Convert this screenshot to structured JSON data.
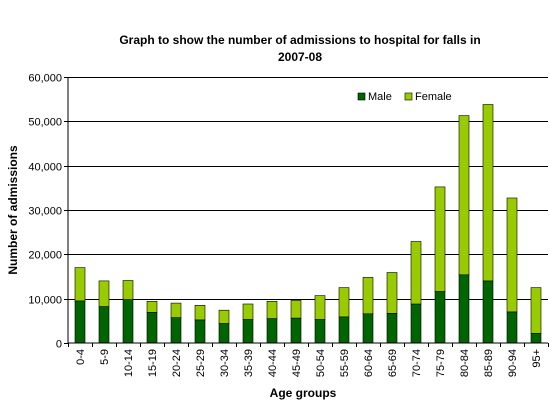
{
  "chart_data": {
    "type": "bar",
    "stacked": true,
    "title_line1": "Graph to show the number of admissions to hospital for falls in",
    "title_line2": "2007-08",
    "xlabel": "Age groups",
    "ylabel": "Number of admissions",
    "ylim": [
      0,
      60000
    ],
    "yticks": [
      0,
      10000,
      20000,
      30000,
      40000,
      50000,
      60000
    ],
    "ytick_labels": [
      "0",
      "10,000",
      "20,000",
      "30,000",
      "40,000",
      "50,000",
      "60,000"
    ],
    "grid": true,
    "legend_position": "top-right",
    "categories": [
      "0-4",
      "5-9",
      "10-14",
      "15-19",
      "20-24",
      "25-29",
      "30-34",
      "35-39",
      "40-44",
      "45-49",
      "50-54",
      "55-59",
      "60-64",
      "65-69",
      "70-74",
      "75-79",
      "80-84",
      "85-89",
      "90-94",
      "95+"
    ],
    "series": [
      {
        "name": "Male",
        "color": "#006400",
        "values": [
          9500,
          8200,
          9800,
          6900,
          5700,
          5200,
          4400,
          5300,
          5500,
          5600,
          5300,
          5900,
          6600,
          6700,
          8800,
          11600,
          15400,
          14000,
          7000,
          2200
        ]
      },
      {
        "name": "Female",
        "color": "#99cc00",
        "values": [
          7500,
          5800,
          4300,
          2500,
          3300,
          3300,
          3000,
          3500,
          3900,
          4000,
          5400,
          6600,
          8200,
          9200,
          14100,
          23600,
          35900,
          39800,
          25700,
          10300
        ]
      }
    ]
  }
}
